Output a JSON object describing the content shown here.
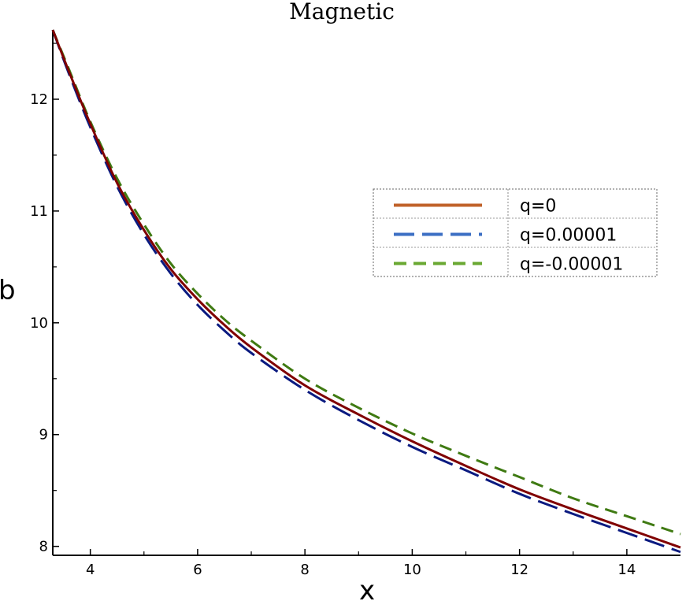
{
  "chart_data": {
    "type": "line",
    "title": "Magnetic",
    "xlabel": "x",
    "ylabel": "b",
    "xlim": [
      3.3,
      15
    ],
    "ylim": [
      7.92,
      12.62
    ],
    "x_ticks": [
      4,
      6,
      8,
      10,
      12,
      14
    ],
    "y_ticks": [
      8,
      9,
      10,
      11,
      12
    ],
    "grid": false,
    "legend_position": "top-right",
    "series": [
      {
        "name": "q=0",
        "legend_color": "#c0622a",
        "color": "#800000",
        "style": "solid",
        "x": [
          3.3,
          3.6,
          4.0,
          4.5,
          5.0,
          5.5,
          6.0,
          6.5,
          7.0,
          8.0,
          9.0,
          10.0,
          11.0,
          12.0,
          13.0,
          14.0,
          15.0
        ],
        "y": [
          12.62,
          12.25,
          11.78,
          11.25,
          10.83,
          10.48,
          10.21,
          9.98,
          9.78,
          9.44,
          9.18,
          8.94,
          8.72,
          8.51,
          8.33,
          8.16,
          7.99
        ]
      },
      {
        "name": "q=0.00001",
        "legend_color": "#3c6fc4",
        "color": "#0a1a80",
        "style": "long-dash",
        "x": [
          3.3,
          3.6,
          4.0,
          4.5,
          5.0,
          5.5,
          6.0,
          6.5,
          7.0,
          8.0,
          9.0,
          10.0,
          11.0,
          12.0,
          13.0,
          14.0,
          15.0
        ],
        "y": [
          12.62,
          12.23,
          11.75,
          11.22,
          10.79,
          10.44,
          10.16,
          9.93,
          9.73,
          9.4,
          9.13,
          8.89,
          8.68,
          8.47,
          8.29,
          8.12,
          7.95
        ]
      },
      {
        "name": "q=-0.00001",
        "legend_color": "#6aa832",
        "color": "#3f7a12",
        "style": "short-dash",
        "x": [
          3.3,
          3.6,
          4.0,
          4.5,
          5.0,
          5.5,
          6.0,
          6.5,
          7.0,
          8.0,
          9.0,
          10.0,
          11.0,
          12.0,
          13.0,
          14.0,
          15.0
        ],
        "y": [
          12.62,
          12.27,
          11.8,
          11.29,
          10.88,
          10.53,
          10.26,
          10.03,
          9.84,
          9.5,
          9.24,
          9.01,
          8.81,
          8.62,
          8.43,
          8.27,
          8.11
        ]
      }
    ]
  }
}
